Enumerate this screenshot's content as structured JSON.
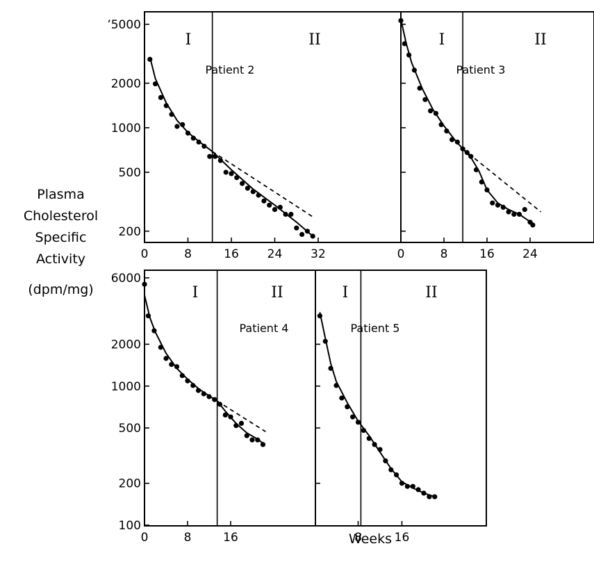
{
  "ylabel_lines": [
    "Plasma",
    "Cholesterol",
    "Specific",
    "Activity",
    "(dpm/mg)"
  ],
  "xlabel": "Weeks",
  "chart_data": [
    {
      "type": "scatter",
      "title": "Patient 2",
      "phase_labels": [
        "I",
        "II"
      ],
      "phase_boundary_week": 12.5,
      "x_axis": {
        "min": 0,
        "max": 34,
        "ticks": [
          0,
          8,
          16,
          24,
          32
        ],
        "tick_labels": [
          "0",
          "8",
          "16",
          "24",
          "32"
        ]
      },
      "y_axis": {
        "scale": "log",
        "min": 160,
        "max": 5600,
        "ticks": [
          200,
          500,
          1000,
          2000,
          5000
        ],
        "tick_labels": [
          "200",
          "500",
          "1000",
          "2000",
          "’5000"
        ]
      },
      "points": [
        [
          1,
          2900
        ],
        [
          2,
          1980
        ],
        [
          3,
          1600
        ],
        [
          4,
          1410
        ],
        [
          5,
          1230
        ],
        [
          6,
          1020
        ],
        [
          7,
          1050
        ],
        [
          8,
          920
        ],
        [
          9,
          850
        ],
        [
          10,
          800
        ],
        [
          11,
          750
        ],
        [
          12,
          640
        ],
        [
          13,
          640
        ],
        [
          14,
          600
        ],
        [
          15,
          500
        ],
        [
          16,
          490
        ],
        [
          17,
          460
        ],
        [
          18,
          420
        ],
        [
          19,
          390
        ],
        [
          20,
          370
        ],
        [
          21,
          350
        ],
        [
          22,
          320
        ],
        [
          23,
          300
        ],
        [
          24,
          280
        ],
        [
          25,
          290
        ],
        [
          26,
          260
        ],
        [
          27,
          260
        ],
        [
          28,
          210
        ],
        [
          29,
          190
        ],
        [
          30,
          200
        ],
        [
          31,
          185
        ]
      ],
      "fit_curve": [
        [
          1,
          3000
        ],
        [
          2,
          2150
        ],
        [
          4,
          1470
        ],
        [
          6,
          1120
        ],
        [
          8,
          930
        ],
        [
          10,
          810
        ],
        [
          12.5,
          690
        ],
        [
          16,
          520
        ],
        [
          20,
          385
        ],
        [
          24,
          300
        ],
        [
          28,
          230
        ],
        [
          31,
          185
        ]
      ],
      "extrapolation_dashed": [
        [
          12.5,
          690
        ],
        [
          31,
          250
        ]
      ]
    },
    {
      "type": "scatter",
      "title": "Patient 3",
      "phase_labels": [
        "I",
        "II"
      ],
      "phase_boundary_week": 11.5,
      "x_axis": {
        "min": 0,
        "max": 27,
        "ticks": [
          0,
          8,
          16,
          24
        ],
        "tick_labels": [
          "0",
          "8",
          "16",
          "24"
        ]
      },
      "y_axis": {
        "scale": "log",
        "min": 160,
        "max": 5600,
        "ticks": [
          200,
          500,
          1000,
          2000,
          5000
        ]
      },
      "points": [
        [
          0,
          5300
        ],
        [
          0.7,
          3700
        ],
        [
          1.5,
          3100
        ],
        [
          2.5,
          2450
        ],
        [
          3.5,
          1850
        ],
        [
          4.5,
          1550
        ],
        [
          5.5,
          1300
        ],
        [
          6.5,
          1250
        ],
        [
          7.5,
          1050
        ],
        [
          8.5,
          950
        ],
        [
          9.5,
          830
        ],
        [
          10.5,
          800
        ],
        [
          11.5,
          720
        ],
        [
          12.3,
          680
        ],
        [
          13,
          640
        ],
        [
          14,
          520
        ],
        [
          15,
          430
        ],
        [
          16,
          380
        ],
        [
          17,
          310
        ],
        [
          18,
          300
        ],
        [
          19,
          290
        ],
        [
          20,
          270
        ],
        [
          21,
          260
        ],
        [
          22,
          260
        ],
        [
          23,
          280
        ],
        [
          24,
          230
        ],
        [
          24.5,
          220
        ]
      ],
      "fit_curve": [
        [
          0,
          5400
        ],
        [
          1,
          3700
        ],
        [
          2,
          2750
        ],
        [
          4,
          1830
        ],
        [
          6,
          1320
        ],
        [
          8,
          1030
        ],
        [
          10,
          830
        ],
        [
          11.5,
          720
        ],
        [
          13,
          630
        ],
        [
          14.5,
          510
        ],
        [
          16,
          380
        ],
        [
          18,
          310
        ],
        [
          20,
          280
        ],
        [
          22,
          260
        ],
        [
          24.5,
          225
        ]
      ],
      "extrapolation_dashed": [
        [
          11.5,
          720
        ],
        [
          26,
          270
        ]
      ]
    },
    {
      "type": "scatter",
      "title": "Patient 4",
      "phase_labels": [
        "I",
        "II"
      ],
      "phase_boundary_week": 13.5,
      "x_axis": {
        "min": 0,
        "max": 23,
        "ticks": [
          0,
          8,
          16
        ],
        "tick_labels": [
          "0",
          "8",
          "16"
        ]
      },
      "y_axis": {
        "scale": "log",
        "min": 100,
        "max": 6000,
        "ticks": [
          100,
          200,
          500,
          1000,
          2000,
          6000
        ],
        "tick_labels": [
          "100",
          "200",
          "500",
          "1000",
          "2000",
          "6000"
        ]
      },
      "points": [
        [
          0,
          5400
        ],
        [
          0.7,
          3200
        ],
        [
          1.8,
          2500
        ],
        [
          3,
          1900
        ],
        [
          4,
          1580
        ],
        [
          5,
          1430
        ],
        [
          6,
          1380
        ],
        [
          7,
          1190
        ],
        [
          8,
          1090
        ],
        [
          9,
          1010
        ],
        [
          10,
          930
        ],
        [
          11,
          880
        ],
        [
          12,
          840
        ],
        [
          13,
          800
        ],
        [
          14,
          740
        ],
        [
          15,
          620
        ],
        [
          16,
          600
        ],
        [
          17,
          520
        ],
        [
          18,
          540
        ],
        [
          19,
          440
        ],
        [
          20,
          410
        ],
        [
          21,
          410
        ],
        [
          22,
          380
        ]
      ],
      "fit_curve": [
        [
          0,
          4500
        ],
        [
          1,
          3100
        ],
        [
          2,
          2450
        ],
        [
          4,
          1720
        ],
        [
          6,
          1340
        ],
        [
          8,
          1120
        ],
        [
          10,
          960
        ],
        [
          12,
          850
        ],
        [
          13.5,
          780
        ],
        [
          15,
          660
        ],
        [
          17,
          540
        ],
        [
          19,
          460
        ],
        [
          21,
          415
        ],
        [
          22.3,
          380
        ]
      ],
      "extrapolation_dashed": [
        [
          13.5,
          780
        ],
        [
          22.5,
          470
        ]
      ]
    },
    {
      "type": "scatter",
      "title": "Patient 5",
      "phase_labels": [
        "I",
        "II"
      ],
      "phase_boundary_week": 8.5,
      "x_axis": {
        "min": 0,
        "max": 24,
        "ticks": [
          8,
          16
        ],
        "tick_labels": [
          "8",
          "16"
        ]
      },
      "y_axis": {
        "scale": "log",
        "min": 100,
        "max": 6000,
        "ticks": [
          200,
          500,
          1000,
          2000
        ]
      },
      "points": [
        [
          1,
          3200
        ],
        [
          2,
          2100
        ],
        [
          3,
          1340
        ],
        [
          4,
          1010
        ],
        [
          5,
          820
        ],
        [
          6,
          710
        ],
        [
          7,
          600
        ],
        [
          8,
          550
        ],
        [
          9,
          480
        ],
        [
          10,
          420
        ],
        [
          11,
          380
        ],
        [
          12,
          350
        ],
        [
          13,
          290
        ],
        [
          14,
          250
        ],
        [
          15,
          230
        ],
        [
          16,
          200
        ],
        [
          17,
          190
        ],
        [
          18,
          190
        ],
        [
          19,
          180
        ],
        [
          20,
          170
        ],
        [
          21,
          160
        ],
        [
          22,
          160
        ]
      ],
      "fit_curve": [
        [
          1,
          3400
        ],
        [
          2,
          2200
        ],
        [
          3,
          1450
        ],
        [
          4,
          1080
        ],
        [
          6,
          760
        ],
        [
          8,
          560
        ],
        [
          10,
          440
        ],
        [
          12,
          335
        ],
        [
          14,
          255
        ],
        [
          16,
          205
        ],
        [
          18,
          185
        ],
        [
          20,
          170
        ],
        [
          22,
          160
        ]
      ],
      "extrapolation_dashed": []
    }
  ]
}
